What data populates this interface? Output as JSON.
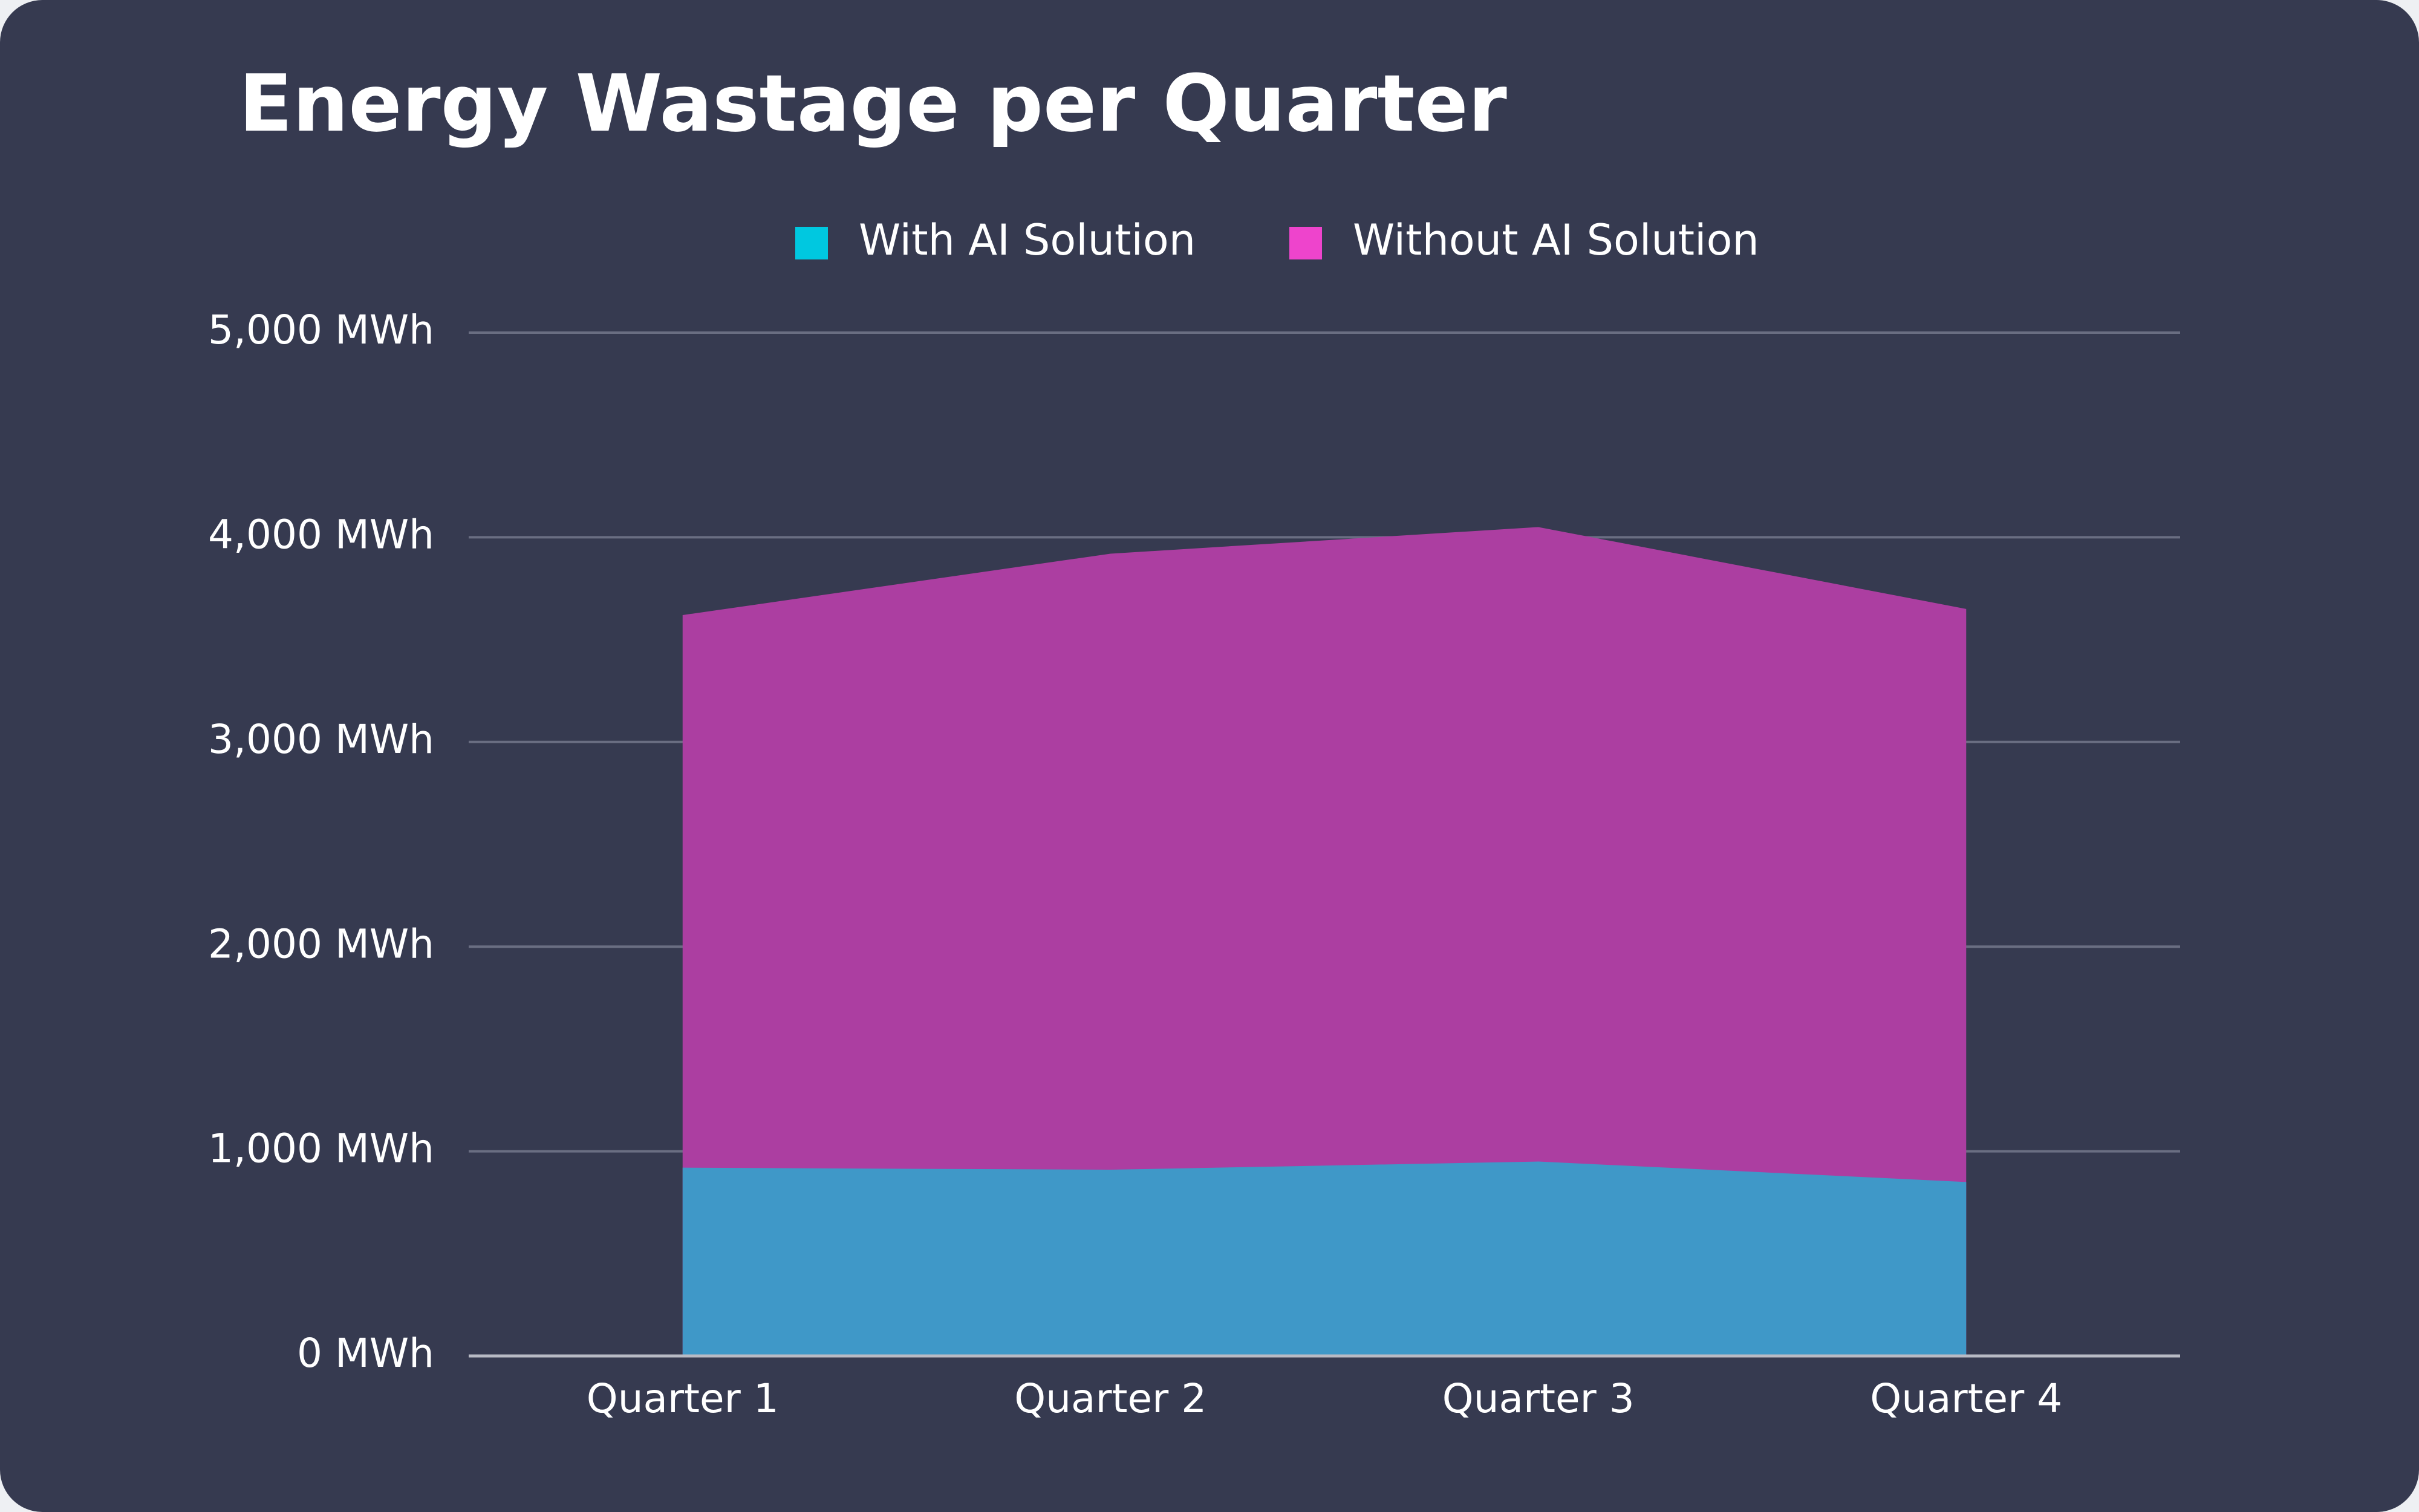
{
  "chart_data": {
    "type": "area",
    "title": "Energy Wastage per Quarter",
    "categories": [
      "Quarter 1",
      "Quarter 2",
      "Quarter 3",
      "Quarter 4"
    ],
    "series": [
      {
        "name": "With AI Solution",
        "values": [
          920,
          910,
          950,
          850
        ],
        "color": "#00c8e0",
        "fill": "#3f98c8"
      },
      {
        "name": "Without AI Solution",
        "values": [
          3620,
          3920,
          4050,
          3650
        ],
        "color": "#ee44cc",
        "fill": "#ac3ea1"
      }
    ],
    "ylim": [
      0,
      5000
    ],
    "yticks": [
      0,
      1000,
      2000,
      3000,
      4000,
      5000
    ],
    "ytick_labels": [
      "0 MWh",
      "1,000 MWh",
      "2,000 MWh",
      "3,000 MWh",
      "4,000 MWh",
      "5,000 MWh"
    ],
    "grid": true,
    "legend_position": "top-center",
    "colors": {
      "background": "#363a50",
      "grid": "#6a6e82",
      "text": "#ffffff"
    }
  }
}
